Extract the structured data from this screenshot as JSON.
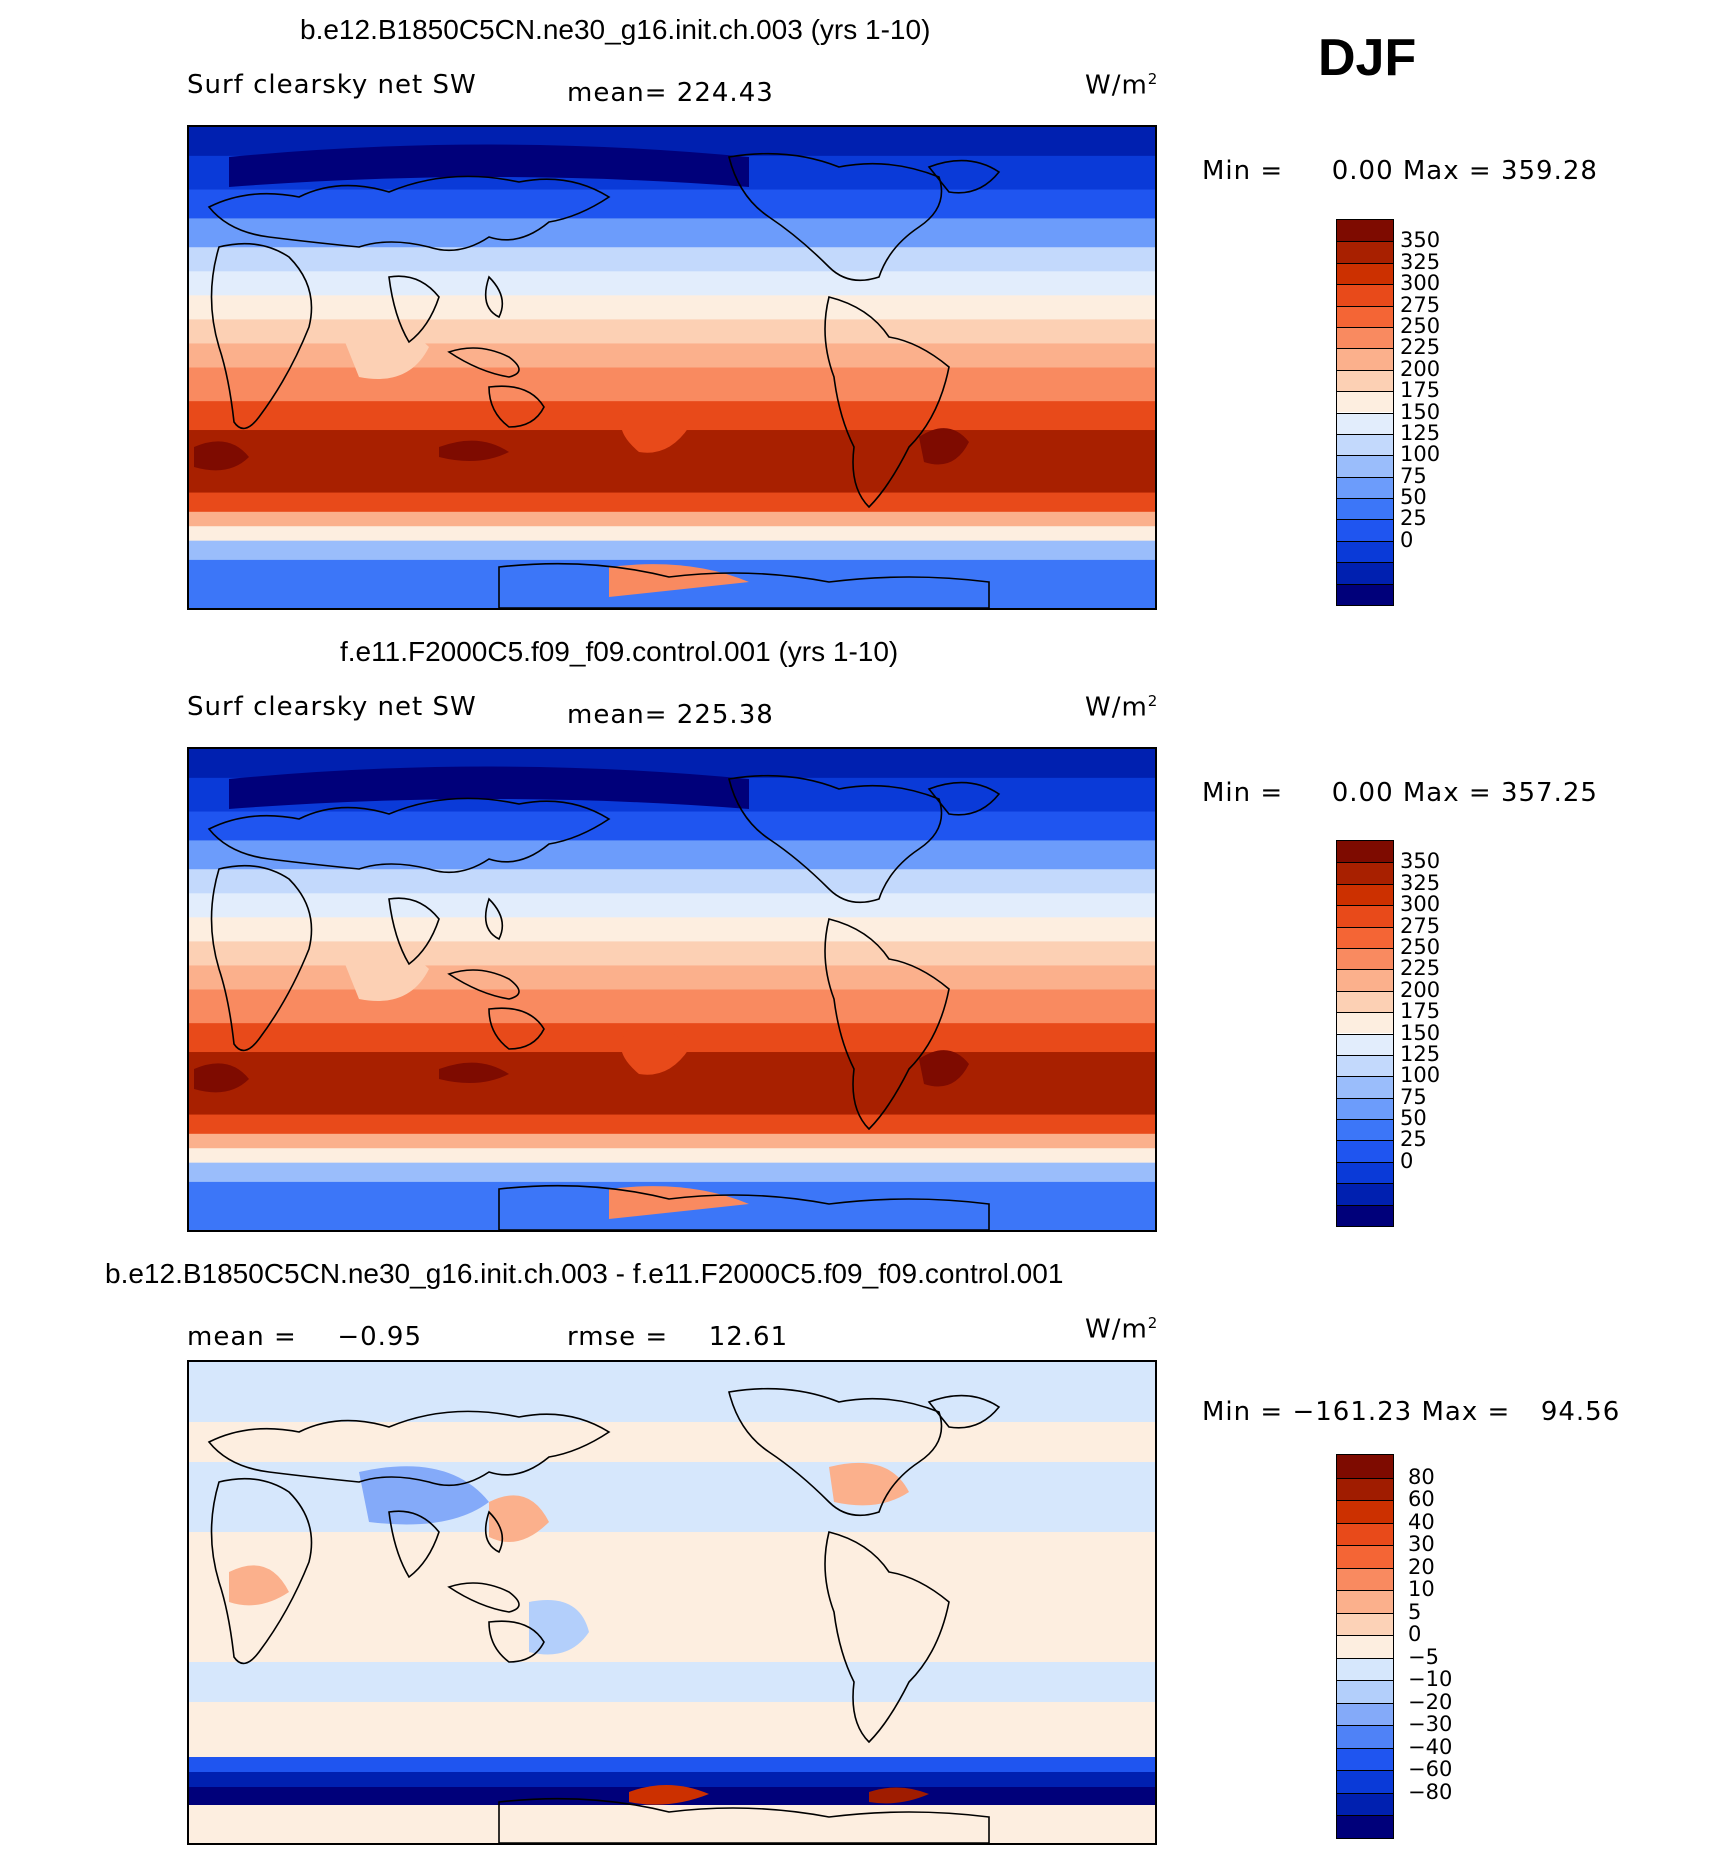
{
  "season": "DJF",
  "colors": {
    "abs_scale": [
      "#00007a",
      "#0020b0",
      "#0a3ad8",
      "#1f55f0",
      "#3c76f8",
      "#6c9cfb",
      "#9abdfb",
      "#c3d9fc",
      "#e2edfc",
      "#fdeee0",
      "#fcd0b4",
      "#fbb08c",
      "#f98a60",
      "#f46535",
      "#e84a1a",
      "#cc3000",
      "#a82000",
      "#7e0b00"
    ],
    "diff_scale": [
      "#00007a",
      "#0020b0",
      "#0a3ad8",
      "#1f55f0",
      "#4f82f7",
      "#84aaf9",
      "#b3cffb",
      "#d6e7fc",
      "#fdeee0",
      "#fcd2b7",
      "#fbb08c",
      "#f98a60",
      "#f46535",
      "#e84a1a",
      "#cc3000",
      "#a01c00",
      "#7e0b00"
    ]
  },
  "chart_data": [
    {
      "type": "heatmap",
      "title": "b.e12.B1850C5CN.ne30_g16.init.ch.003 (yrs 1-10)",
      "variable": "Surf clearsky net SW",
      "units": "W/m",
      "units_sup": "2",
      "mean_label": "mean=",
      "mean": "224.43",
      "min_label": "Min =",
      "min": "0.00",
      "max_label": "Max =",
      "max": "359.28",
      "levels": [
        "350",
        "325",
        "300",
        "275",
        "250",
        "225",
        "200",
        "175",
        "150",
        "125",
        "100",
        "75",
        "50",
        "25",
        "0"
      ]
    },
    {
      "type": "heatmap",
      "title": "f.e11.F2000C5.f09_f09.control.001 (yrs 1-10)",
      "variable": "Surf clearsky net SW",
      "units": "W/m",
      "units_sup": "2",
      "mean_label": "mean=",
      "mean": "225.38",
      "min_label": "Min =",
      "min": "0.00",
      "max_label": "Max =",
      "max": "357.25",
      "levels": [
        "350",
        "325",
        "300",
        "275",
        "250",
        "225",
        "200",
        "175",
        "150",
        "125",
        "100",
        "75",
        "50",
        "25",
        "0"
      ]
    },
    {
      "type": "heatmap",
      "title": "b.e12.B1850C5CN.ne30_g16.init.ch.003 - f.e11.F2000C5.f09_f09.control.001",
      "units": "W/m",
      "units_sup": "2",
      "mean_label": "mean =",
      "mean": "−0.95",
      "rmse_label": "rmse =",
      "rmse": "12.61",
      "min_label": "Min =",
      "min": "−161.23",
      "max_label": "Max =",
      "max": "94.56",
      "levels": [
        "80",
        "60",
        "40",
        "30",
        "20",
        "10",
        "5",
        "0",
        "−5",
        "−10",
        "−20",
        "−30",
        "−40",
        "−60",
        "−80"
      ]
    }
  ]
}
